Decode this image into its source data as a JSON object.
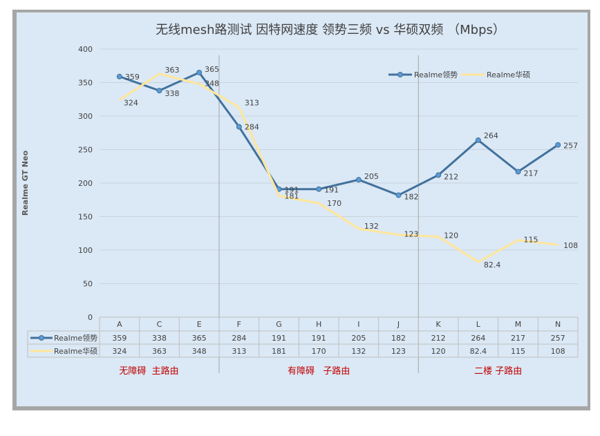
{
  "chart_data": {
    "type": "line",
    "title": "无线mesh路测试 因特网速度 领势三频 vs 华硕双频 （Mbps）",
    "ylabel": "Realme GT Neo",
    "xlabel": "",
    "ylim": [
      0,
      400
    ],
    "yticks": [
      0,
      50,
      100,
      150,
      200,
      250,
      300,
      350,
      400
    ],
    "categories": [
      "A",
      "C",
      "E",
      "F",
      "G",
      "H",
      "I",
      "J",
      "K",
      "L",
      "M",
      "N"
    ],
    "series": [
      {
        "name": "Realme领势",
        "color": "#41719c",
        "values": [
          359,
          338,
          365,
          284,
          191,
          191,
          205,
          182,
          212,
          264,
          217,
          257
        ],
        "labels": [
          "359",
          "338",
          "365",
          "284",
          "191",
          "191",
          "205",
          "182",
          "212",
          "264",
          "217",
          "257"
        ]
      },
      {
        "name": "Realme华硕",
        "color": "#ffe699",
        "values": [
          324,
          363,
          348,
          313,
          181,
          170,
          132,
          123,
          120,
          82.4,
          115,
          108
        ],
        "labels": [
          "324",
          "363",
          "348",
          "313",
          "181",
          "170",
          "132",
          "123",
          "120",
          "82.4",
          "115",
          "108"
        ]
      }
    ],
    "sections": [
      "无障碍  主路由",
      "有障碍   子路由",
      "二楼 子路由"
    ],
    "grid": true,
    "legend": "top-right",
    "data_table": true
  }
}
